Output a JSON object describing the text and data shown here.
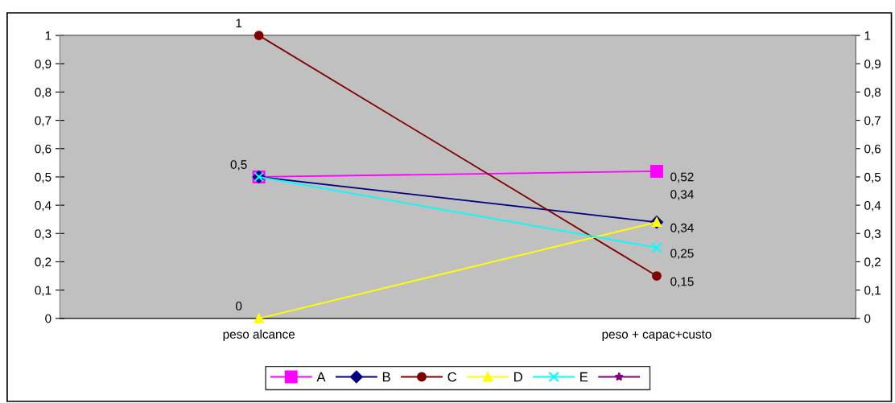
{
  "chart_data": {
    "type": "line",
    "categories": [
      "peso alcance",
      "peso + capac+custo"
    ],
    "series": [
      {
        "name": "A",
        "color": "#ff00ff",
        "marker": "square",
        "values": [
          0.5,
          0.52
        ],
        "value_labels": [
          null,
          "0,52"
        ]
      },
      {
        "name": "B",
        "color": "#000080",
        "marker": "diamond",
        "values": [
          0.5,
          0.34
        ],
        "value_labels": [
          "0,5",
          "0,34"
        ]
      },
      {
        "name": "C",
        "color": "#800000",
        "marker": "circle",
        "values": [
          1,
          0.15
        ],
        "value_labels": [
          "1",
          "0,15"
        ]
      },
      {
        "name": "D",
        "color": "#ffff00",
        "marker": "triangle",
        "values": [
          0,
          0.34
        ],
        "value_labels": [
          "0",
          "0,34"
        ]
      },
      {
        "name": "E",
        "color": "#00ffff",
        "marker": "cross",
        "values": [
          0.5,
          0.25
        ],
        "value_labels": [
          null,
          "0,25"
        ]
      },
      {
        "color": "#800080",
        "marker": "star",
        "values": [
          null,
          null
        ]
      }
    ],
    "ylim": [
      0,
      1
    ],
    "yticks": [
      {
        "value": 0,
        "label": "0"
      },
      {
        "value": 0.1,
        "label": "0,1"
      },
      {
        "value": 0.2,
        "label": "0,2"
      },
      {
        "value": 0.3,
        "label": "0,3"
      },
      {
        "value": 0.4,
        "label": "0,4"
      },
      {
        "value": 0.5,
        "label": "0,5"
      },
      {
        "value": 0.6,
        "label": "0,6"
      },
      {
        "value": 0.7,
        "label": "0,7"
      },
      {
        "value": 0.8,
        "label": "0,8"
      },
      {
        "value": 0.9,
        "label": "0,9"
      },
      {
        "value": 1,
        "label": "1"
      }
    ],
    "y2lim": [
      0,
      1
    ],
    "y2ticks": [
      {
        "value": 0,
        "label": "0"
      },
      {
        "value": 0.1,
        "label": "0,1"
      },
      {
        "value": 0.2,
        "label": "0,2"
      },
      {
        "value": 0.3,
        "label": "0,3"
      },
      {
        "value": 0.4,
        "label": "0,4"
      },
      {
        "value": 0.5,
        "label": "0,5"
      },
      {
        "value": 0.6,
        "label": "0,6"
      },
      {
        "value": 0.7,
        "label": "0,7"
      },
      {
        "value": 0.8,
        "label": "0,8"
      },
      {
        "value": 0.9,
        "label": "0,9"
      },
      {
        "value": 1,
        "label": "1"
      }
    ],
    "grid": false,
    "legend": "bottom"
  }
}
